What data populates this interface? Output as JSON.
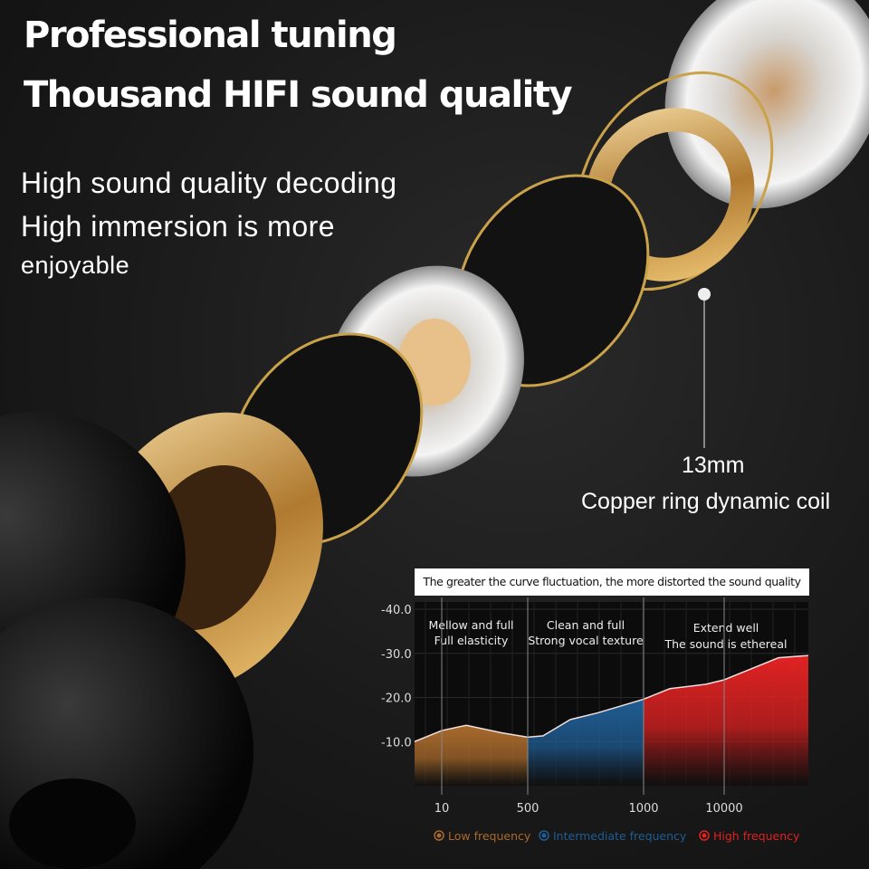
{
  "headline": {
    "line1": "Professional tuning",
    "line2": "Thousand HIFI sound quality"
  },
  "subtext": {
    "line1": "High sound quality decoding",
    "line2": "High immersion is more",
    "line3": "enjoyable"
  },
  "callout": {
    "size": "13mm",
    "label": "Copper ring dynamic coil"
  },
  "colors": {
    "low": "#a86a2c",
    "mid": "#1f5d93",
    "high": "#e02222",
    "gold": "#c9a24a"
  },
  "chart_data": {
    "type": "area",
    "title": "The greater the curve fluctuation, the more distorted the sound quality",
    "xlabel": "",
    "ylabel": "",
    "x_ticks": [
      10,
      500,
      1000,
      10000
    ],
    "x_tick_labels": [
      "10",
      "500",
      "1000",
      "10000"
    ],
    "xlim": [
      1,
      30000
    ],
    "y_ticks": [
      -40,
      -30,
      -20,
      -10
    ],
    "y_tick_labels": [
      "-40.0",
      "-30.0",
      "-20.0",
      "-10.0"
    ],
    "ylim": [
      0,
      -40
    ],
    "grid": true,
    "points": [
      [
        1,
        -10
      ],
      [
        10,
        -12.5
      ],
      [
        150,
        -13.7
      ],
      [
        350,
        -12
      ],
      [
        500,
        -11
      ],
      [
        566,
        -11.3
      ],
      [
        684,
        -15
      ],
      [
        801,
        -16.5
      ],
      [
        1000,
        -19.6
      ],
      [
        3930,
        -22
      ],
      [
        7980,
        -23
      ],
      [
        10000,
        -24
      ],
      [
        16450,
        -26.5
      ],
      [
        22900,
        -29
      ],
      [
        30000,
        -29.5
      ]
    ],
    "regions": [
      {
        "from": 1,
        "to": 500,
        "color_key": "low",
        "line1": "Mellow and full",
        "line2": "Full elasticity"
      },
      {
        "from": 500,
        "to": 1000,
        "color_key": "mid",
        "line1": "Clean and full",
        "line2": "Strong vocal texture"
      },
      {
        "from": 1000,
        "to": 30000,
        "color_key": "high",
        "line1": "Extend well",
        "line2": "The sound is ethereal"
      }
    ],
    "legend": [
      {
        "name": "Low frequency",
        "color_key": "low"
      },
      {
        "name": "Intermediate frequency",
        "color_key": "mid"
      },
      {
        "name": "High frequency",
        "color_key": "high"
      }
    ],
    "legend_placement": "bottom"
  }
}
